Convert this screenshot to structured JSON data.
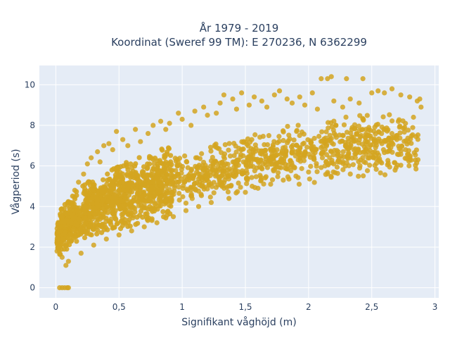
{
  "chart_data": {
    "type": "scatter",
    "title": "År 1979 - 2019",
    "subtitle": "Koordinat (Sweref 99 TM): E 270236, N 6362299",
    "xlabel": "Signifikant våghöjd (m)",
    "ylabel": "Vågperiod (s)",
    "xlim": [
      -0.13,
      3.03
    ],
    "ylim": [
      -0.5,
      10.95
    ],
    "x_ticks": [
      0,
      0.5,
      1,
      1.5,
      2,
      2.5,
      3
    ],
    "x_tick_labels": [
      "0",
      "0,5",
      "1",
      "1,5",
      "2",
      "2,5",
      "3"
    ],
    "y_ticks": [
      0,
      2,
      4,
      6,
      8,
      10
    ],
    "y_tick_labels": [
      "0",
      "2",
      "4",
      "6",
      "8",
      "10"
    ],
    "grid": true,
    "plot_background": "#e5ecf6",
    "point_color": "#d4a520",
    "series": [
      {
        "values": [
          {
            "x": 0.03,
            "y": 0.0
          },
          {
            "x": 0.05,
            "y": 0.0
          },
          {
            "x": 0.07,
            "y": 0.0
          },
          {
            "x": 0.09,
            "y": 0.0
          },
          {
            "x": 0.1,
            "y": 0.0
          },
          {
            "x": 0.01,
            "y": 1.8
          },
          {
            "x": 0.02,
            "y": 2.5
          },
          {
            "x": 0.04,
            "y": 3.0
          },
          {
            "x": 0.05,
            "y": 1.5
          },
          {
            "x": 0.08,
            "y": 1.1
          },
          {
            "x": 0.1,
            "y": 1.3
          },
          {
            "x": 0.12,
            "y": 4.2
          },
          {
            "x": 0.15,
            "y": 4.8
          },
          {
            "x": 0.18,
            "y": 5.2
          },
          {
            "x": 0.2,
            "y": 1.7
          },
          {
            "x": 0.22,
            "y": 5.6
          },
          {
            "x": 0.25,
            "y": 6.1
          },
          {
            "x": 0.28,
            "y": 6.4
          },
          {
            "x": 0.3,
            "y": 2.1
          },
          {
            "x": 0.33,
            "y": 6.7
          },
          {
            "x": 0.35,
            "y": 6.2
          },
          {
            "x": 0.38,
            "y": 7.0
          },
          {
            "x": 0.4,
            "y": 2.4
          },
          {
            "x": 0.42,
            "y": 7.1
          },
          {
            "x": 0.45,
            "y": 6.8
          },
          {
            "x": 0.48,
            "y": 7.7
          },
          {
            "x": 0.5,
            "y": 2.6
          },
          {
            "x": 0.53,
            "y": 7.3
          },
          {
            "x": 0.57,
            "y": 7.0
          },
          {
            "x": 0.6,
            "y": 2.8
          },
          {
            "x": 0.63,
            "y": 7.8
          },
          {
            "x": 0.67,
            "y": 7.2
          },
          {
            "x": 0.7,
            "y": 3.0
          },
          {
            "x": 0.73,
            "y": 7.6
          },
          {
            "x": 0.77,
            "y": 8.0
          },
          {
            "x": 0.8,
            "y": 3.2
          },
          {
            "x": 0.83,
            "y": 8.2
          },
          {
            "x": 0.87,
            "y": 7.8
          },
          {
            "x": 0.9,
            "y": 8.1
          },
          {
            "x": 0.93,
            "y": 3.5
          },
          {
            "x": 0.97,
            "y": 8.6
          },
          {
            "x": 1.0,
            "y": 8.3
          },
          {
            "x": 1.03,
            "y": 3.8
          },
          {
            "x": 1.07,
            "y": 8.0
          },
          {
            "x": 1.1,
            "y": 8.7
          },
          {
            "x": 1.13,
            "y": 4.0
          },
          {
            "x": 1.17,
            "y": 8.9
          },
          {
            "x": 1.2,
            "y": 8.5
          },
          {
            "x": 1.23,
            "y": 4.2
          },
          {
            "x": 1.27,
            "y": 8.6
          },
          {
            "x": 1.3,
            "y": 9.1
          },
          {
            "x": 1.33,
            "y": 9.5
          },
          {
            "x": 1.37,
            "y": 4.4
          },
          {
            "x": 1.4,
            "y": 9.3
          },
          {
            "x": 1.43,
            "y": 8.8
          },
          {
            "x": 1.47,
            "y": 9.6
          },
          {
            "x": 1.5,
            "y": 4.7
          },
          {
            "x": 1.53,
            "y": 9.0
          },
          {
            "x": 1.57,
            "y": 9.4
          },
          {
            "x": 1.6,
            "y": 4.9
          },
          {
            "x": 1.63,
            "y": 9.2
          },
          {
            "x": 1.67,
            "y": 8.9
          },
          {
            "x": 1.7,
            "y": 5.1
          },
          {
            "x": 1.73,
            "y": 9.5
          },
          {
            "x": 1.77,
            "y": 9.7
          },
          {
            "x": 1.8,
            "y": 5.3
          },
          {
            "x": 1.83,
            "y": 9.3
          },
          {
            "x": 1.87,
            "y": 9.1
          },
          {
            "x": 1.9,
            "y": 5.5
          },
          {
            "x": 1.93,
            "y": 9.4
          },
          {
            "x": 1.97,
            "y": 9.0
          },
          {
            "x": 2.0,
            "y": 5.7
          },
          {
            "x": 2.03,
            "y": 9.6
          },
          {
            "x": 2.07,
            "y": 8.8
          },
          {
            "x": 2.1,
            "y": 10.3
          },
          {
            "x": 2.13,
            "y": 6.0
          },
          {
            "x": 2.15,
            "y": 10.3
          },
          {
            "x": 2.18,
            "y": 10.4
          },
          {
            "x": 2.2,
            "y": 9.2
          },
          {
            "x": 2.23,
            "y": 6.2
          },
          {
            "x": 2.27,
            "y": 8.9
          },
          {
            "x": 2.3,
            "y": 10.3
          },
          {
            "x": 2.33,
            "y": 9.3
          },
          {
            "x": 2.37,
            "y": 6.4
          },
          {
            "x": 2.4,
            "y": 9.1
          },
          {
            "x": 2.43,
            "y": 10.3
          },
          {
            "x": 2.47,
            "y": 6.7
          },
          {
            "x": 2.5,
            "y": 9.6
          },
          {
            "x": 2.53,
            "y": 6.9
          },
          {
            "x": 2.55,
            "y": 9.7
          },
          {
            "x": 2.58,
            "y": 7.1
          },
          {
            "x": 2.6,
            "y": 9.6
          },
          {
            "x": 2.63,
            "y": 7.3
          },
          {
            "x": 2.66,
            "y": 9.8
          },
          {
            "x": 2.7,
            "y": 7.5
          },
          {
            "x": 2.73,
            "y": 9.5
          },
          {
            "x": 2.76,
            "y": 7.9
          },
          {
            "x": 2.8,
            "y": 9.4
          },
          {
            "x": 2.83,
            "y": 8.4
          },
          {
            "x": 2.86,
            "y": 9.2
          },
          {
            "x": 2.88,
            "y": 9.3
          },
          {
            "x": 2.89,
            "y": 8.9
          }
        ]
      }
    ]
  }
}
